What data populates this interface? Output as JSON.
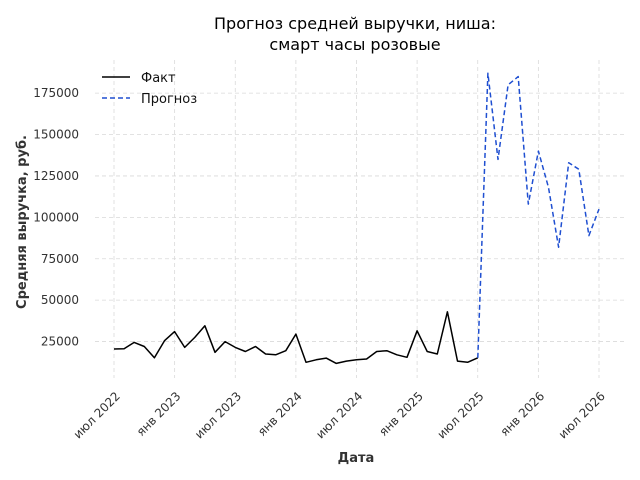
{
  "chart_data": {
    "type": "line",
    "title": [
      "Прогноз средней выручки, ниша:",
      "смарт часы розовые"
    ],
    "xlabel": "Дата",
    "ylabel": "Средняя выручка, руб.",
    "x_ticks": [
      "июл 2022",
      "янв 2023",
      "июл 2023",
      "янв 2024",
      "июл 2024",
      "янв 2025",
      "июл 2025",
      "янв 2026",
      "июл 2026"
    ],
    "y_ticks": [
      "25000",
      "50000",
      "75000",
      "100000",
      "125000",
      "150000",
      "175000"
    ],
    "ylim": [
      3000,
      195000
    ],
    "grid": true,
    "legend_position": "top-left",
    "series": [
      {
        "name": "Факт",
        "color": "#000000",
        "style": "solid",
        "x": [
          "2022-07",
          "2022-08",
          "2022-09",
          "2022-10",
          "2022-11",
          "2022-12",
          "2023-01",
          "2023-02",
          "2023-03",
          "2023-04",
          "2023-05",
          "2023-06",
          "2023-07",
          "2023-08",
          "2023-09",
          "2023-10",
          "2023-11",
          "2023-12",
          "2024-01",
          "2024-02",
          "2024-03",
          "2024-04",
          "2024-05",
          "2024-06",
          "2024-07",
          "2024-08",
          "2024-09",
          "2024-10",
          "2024-11",
          "2024-12",
          "2025-01",
          "2025-02",
          "2025-03",
          "2025-04",
          "2025-05",
          "2025-06",
          "2025-07"
        ],
        "y": [
          20500,
          20700,
          24500,
          22000,
          15200,
          25500,
          31000,
          21500,
          27500,
          34500,
          18500,
          25000,
          21500,
          19000,
          22000,
          17500,
          17000,
          19500,
          29500,
          12500,
          14000,
          15000,
          11800,
          13200,
          14000,
          14500,
          19000,
          19500,
          17000,
          15500,
          31500,
          19000,
          17500,
          43000,
          13200,
          12500,
          15200
        ]
      },
      {
        "name": "Прогноз",
        "color": "#1f4fd1",
        "style": "dashed",
        "x": [
          "2025-07",
          "2025-08",
          "2025-09",
          "2025-10",
          "2025-11",
          "2025-12",
          "2026-01",
          "2026-02",
          "2026-03",
          "2026-04",
          "2026-05",
          "2026-06",
          "2026-07"
        ],
        "y": [
          15200,
          187000,
          135000,
          180000,
          185000,
          108000,
          140000,
          118000,
          82000,
          133000,
          129000,
          89000,
          105000
        ]
      }
    ]
  }
}
